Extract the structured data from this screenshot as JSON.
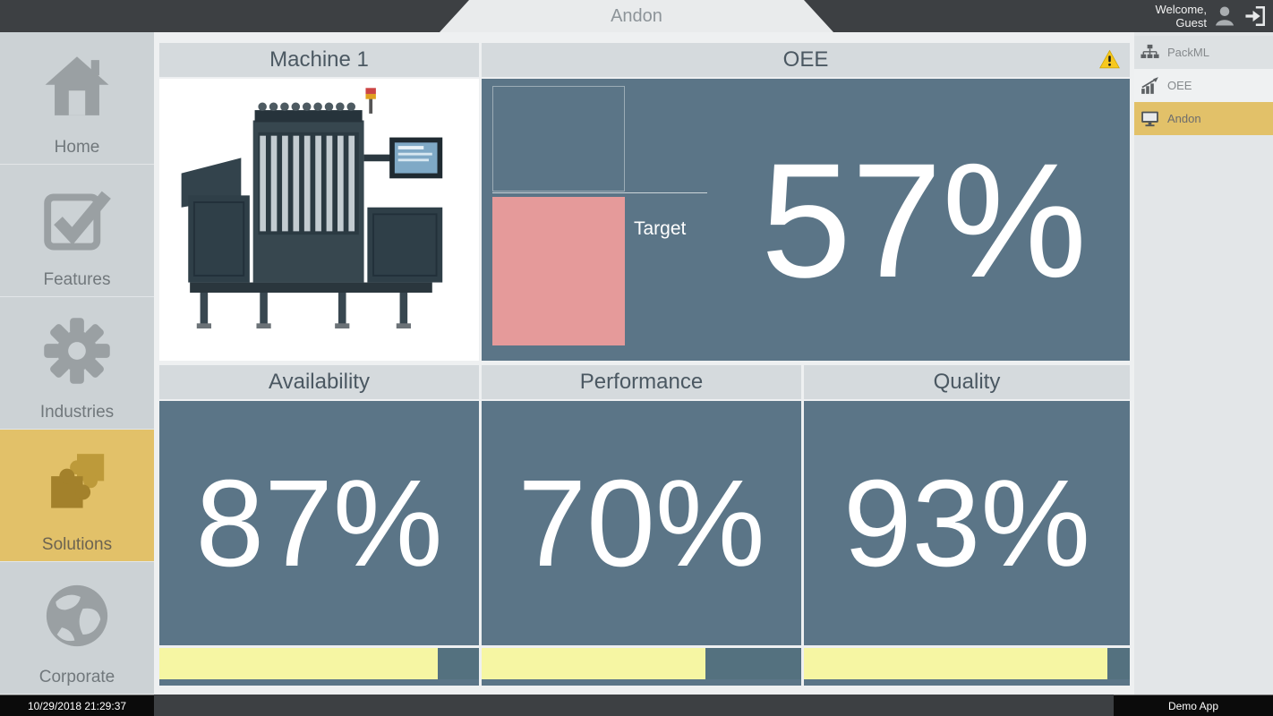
{
  "colors": {
    "accent_gold": "#e2c169",
    "panel_slate": "#5b7587",
    "progress_yellow": "#f6f6a3",
    "target_pink": "#e59a9a",
    "warning_yellow": "#f7c81e",
    "header_gray": "#d5dadd"
  },
  "top_bar": {
    "title": "Andon",
    "welcome_line1": "Welcome,",
    "welcome_line2": "Guest"
  },
  "left_nav": {
    "items": [
      {
        "label": "Home",
        "icon": "home-icon",
        "active": false
      },
      {
        "label": "Features",
        "icon": "checkbox-icon",
        "active": false
      },
      {
        "label": "Industries",
        "icon": "gear-icon",
        "active": false
      },
      {
        "label": "Solutions",
        "icon": "puzzle-icon",
        "active": true
      },
      {
        "label": "Corporate",
        "icon": "globe-icon",
        "active": false
      }
    ]
  },
  "right_nav": {
    "items": [
      {
        "label": "PackML",
        "icon": "hierarchy-icon",
        "active": false
      },
      {
        "label": "OEE",
        "icon": "chart-icon",
        "active": false
      },
      {
        "label": "Andon",
        "icon": "monitor-icon",
        "active": true
      }
    ]
  },
  "machine_panel": {
    "title": "Machine 1"
  },
  "oee_panel": {
    "title": "OEE",
    "value": "57%",
    "target_label": "Target"
  },
  "kpi_panels": [
    {
      "title": "Availability",
      "value": "87%",
      "progress": 87
    },
    {
      "title": "Performance",
      "value": "70%",
      "progress": 70
    },
    {
      "title": "Quality",
      "value": "93%",
      "progress": 93
    }
  ],
  "status_bar": {
    "datetime": "10/29/2018 21:29:37",
    "app_name": "Demo App"
  }
}
